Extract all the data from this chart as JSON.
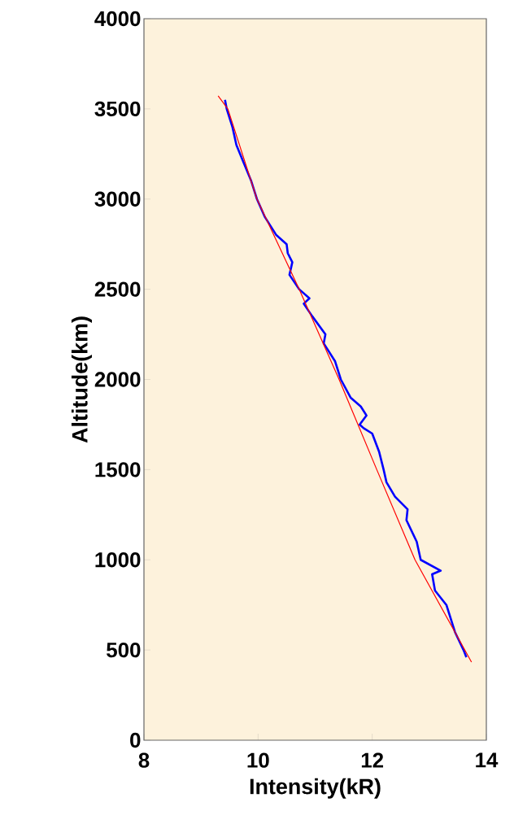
{
  "chart_data": {
    "type": "line",
    "xlabel": "Intensity(kR)",
    "ylabel": "Altitude(km)",
    "xlim": [
      8,
      14
    ],
    "ylim": [
      0,
      4000
    ],
    "xticks": [
      8,
      10,
      12,
      14
    ],
    "yticks": [
      0,
      500,
      1000,
      1500,
      2000,
      2500,
      3000,
      3500,
      4000
    ],
    "grid": false,
    "marker": "none",
    "line_style": "solid",
    "series": [
      {
        "color": "#0000ff",
        "x": [
          9.42,
          9.45,
          9.55,
          9.62,
          9.75,
          9.88,
          9.98,
          10.12,
          10.32,
          10.5,
          10.52,
          10.6,
          10.55,
          10.72,
          10.9,
          10.8,
          10.95,
          11.18,
          11.15,
          11.35,
          11.45,
          11.62,
          11.8,
          11.9,
          11.78,
          11.85,
          12.0,
          12.12,
          12.2,
          12.25,
          12.4,
          12.62,
          12.6,
          12.78,
          12.85,
          13.2,
          13.05,
          13.1,
          13.3,
          13.35,
          13.45,
          13.6,
          13.65
        ],
        "values": [
          3550,
          3500,
          3400,
          3300,
          3200,
          3100,
          3000,
          2900,
          2800,
          2750,
          2700,
          2650,
          2580,
          2500,
          2450,
          2420,
          2350,
          2250,
          2200,
          2100,
          2000,
          1900,
          1850,
          1800,
          1750,
          1730,
          1700,
          1600,
          1500,
          1430,
          1350,
          1280,
          1220,
          1100,
          1000,
          940,
          920,
          830,
          750,
          700,
          600,
          500,
          460
        ]
      },
      {
        "color": "#ff0000",
        "x": [
          9.3,
          9.47,
          9.98,
          10.72,
          11.42,
          12.08,
          12.75,
          13.74
        ],
        "values": [
          3572,
          3500,
          3000,
          2500,
          2000,
          1500,
          1000,
          433
        ]
      }
    ]
  }
}
